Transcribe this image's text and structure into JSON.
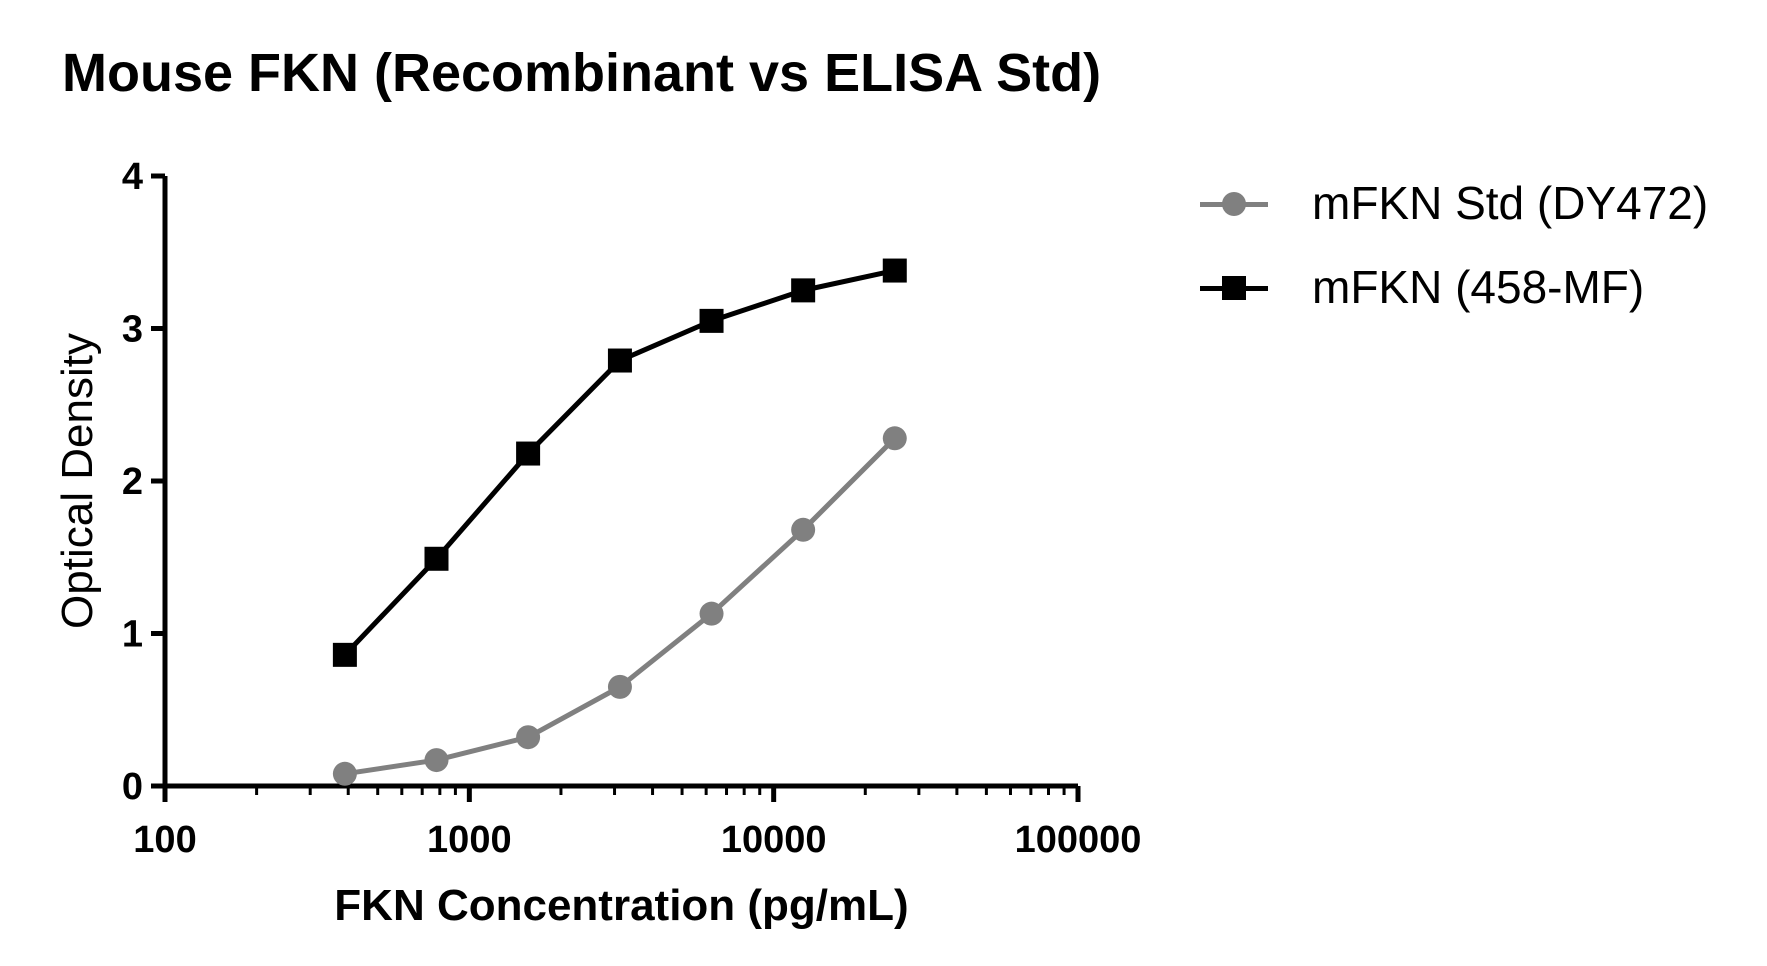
{
  "chart_data": {
    "type": "line",
    "title": "Mouse FKN (Recombinant vs ELISA Std)",
    "xlabel": "FKN Concentration  (pg/mL)",
    "ylabel": "Optical Density",
    "x_scale": "log",
    "xlim": [
      100,
      100000
    ],
    "ylim": [
      0,
      4
    ],
    "x_ticks": [
      100,
      1000,
      10000,
      100000
    ],
    "x_tick_labels": [
      "100",
      "1000",
      "10000",
      "100000"
    ],
    "y_ticks": [
      0,
      1,
      2,
      3,
      4
    ],
    "y_tick_labels": [
      "0",
      "1",
      "2",
      "3",
      "4"
    ],
    "legend_position": "right",
    "grid": false,
    "series": [
      {
        "name": "mFKN Std (DY472)",
        "marker": "circle",
        "color": "#808080",
        "x": [
          390,
          780,
          1560,
          3125,
          6250,
          12500,
          25000
        ],
        "y": [
          0.08,
          0.17,
          0.32,
          0.65,
          1.13,
          1.68,
          2.28
        ]
      },
      {
        "name": "mFKN (458-MF)",
        "marker": "square",
        "color": "#000000",
        "x": [
          390,
          780,
          1560,
          3125,
          6250,
          12500,
          25000
        ],
        "y": [
          0.86,
          1.49,
          2.18,
          2.79,
          3.05,
          3.25,
          3.38
        ]
      }
    ]
  }
}
